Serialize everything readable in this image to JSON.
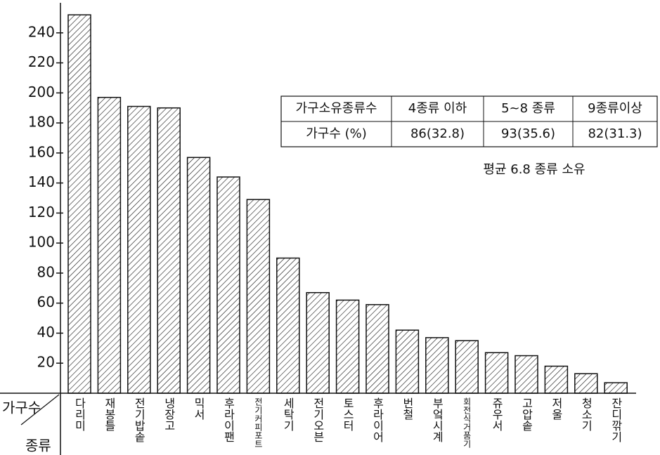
{
  "chart_data": {
    "type": "bar",
    "categories": [
      "다리미",
      "재봉틀",
      "전기밥솥",
      "냉장고",
      "믹서",
      "후라이팬",
      "전기커피포트",
      "세탁기",
      "전기오븐",
      "토스터",
      "후라이어",
      "번철",
      "부엌시계",
      "회전식거품기",
      "쥬우서",
      "고압솥",
      "저울",
      "청소기",
      "잔디깎기"
    ],
    "values": [
      252,
      197,
      191,
      190,
      157,
      144,
      129,
      90,
      67,
      62,
      59,
      42,
      37,
      35,
      27,
      25,
      18,
      13,
      7
    ],
    "color": "#111111",
    "ylim": [
      0,
      260
    ],
    "yticks": [
      20,
      40,
      60,
      80,
      100,
      120,
      140,
      160,
      180,
      200,
      220,
      240
    ],
    "y_label": "가구수",
    "x_label": "종류",
    "table": {
      "header": [
        "가구소유종류수",
        "4종류 이하",
        "5~8 종류",
        "9종류이상"
      ],
      "rows": [
        [
          "가구수 (%)",
          "86(32.8)",
          "93(35.6)",
          "82(31.3)"
        ]
      ]
    },
    "annotation": "평균 6.8 종류 소유"
  }
}
